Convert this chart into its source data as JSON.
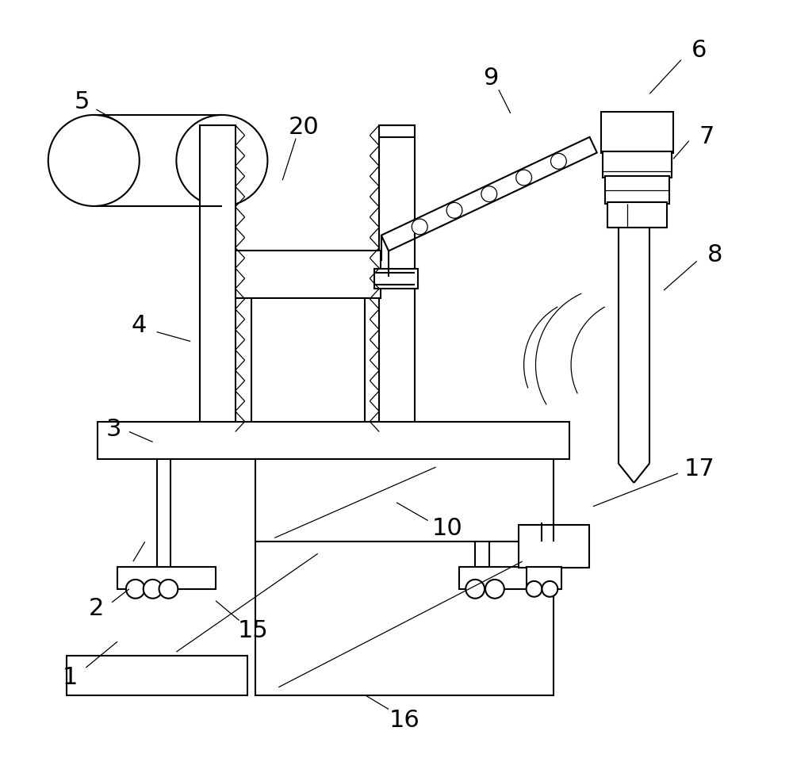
{
  "bg_color": "#ffffff",
  "line_color": "#000000",
  "lw": 1.5,
  "lw_thin": 0.9,
  "fig_width": 10.0,
  "fig_height": 9.8
}
